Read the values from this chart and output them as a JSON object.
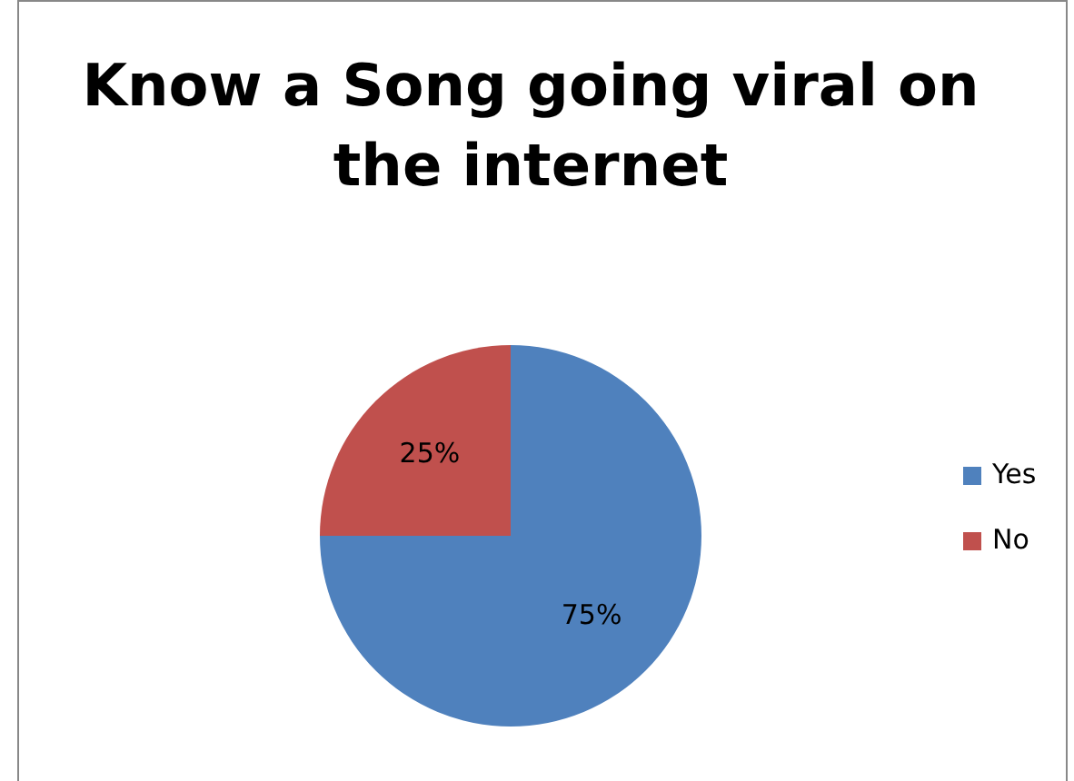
{
  "chart_data": {
    "type": "pie",
    "title": "Know a Song going viral on the internet",
    "categories": [
      "Yes",
      "No"
    ],
    "values": [
      75,
      25
    ],
    "colors": [
      "#4f81bd",
      "#c0504d"
    ],
    "value_labels": [
      "75%",
      "25%"
    ],
    "legend": "right"
  }
}
